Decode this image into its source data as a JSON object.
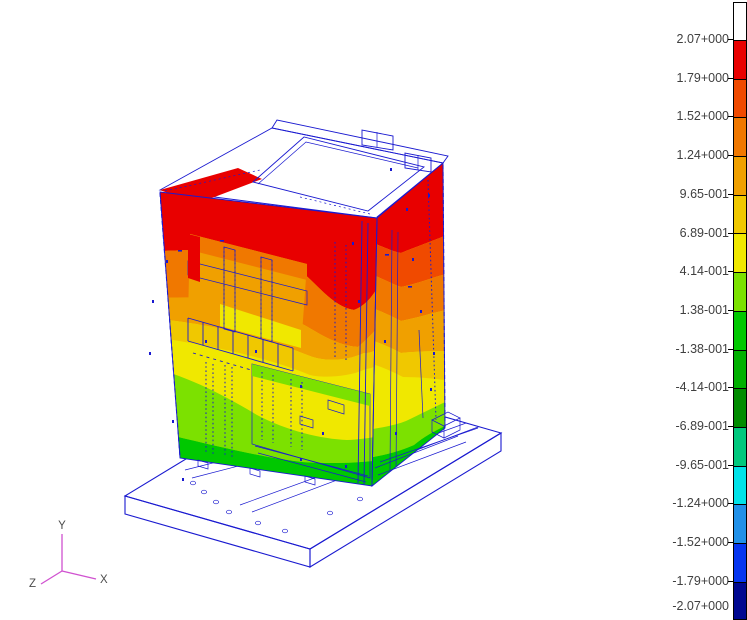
{
  "scene": {
    "background": "#ffffff"
  },
  "colorbar": {
    "text_color": "#3f3f3f",
    "tick_color": "#000000"
  },
  "triad": {
    "x_label": "X",
    "y_label": "Y",
    "z_label": "Z",
    "axis_color": "#d052d0",
    "label_color": "#4c4c4c"
  },
  "model": {
    "edge_color": "#1a1ad0"
  },
  "chart_data": {
    "type": "heatmap",
    "plot_kind": "3d-fringe-contour",
    "title": "",
    "legend_position": "right",
    "legend_labels": [
      "2.07+000",
      "1.79+000",
      "1.52+000",
      "1.24+000",
      "9.65-001",
      "6.89-001",
      "4.14-001",
      "1.38-001",
      "-1.38-001",
      "-4.14-001",
      "-6.89-001",
      "-9.65-001",
      "-1.24+000",
      "-1.52+000",
      "-1.79+000",
      "-2.07+000"
    ],
    "legend_values": [
      2.07,
      1.79,
      1.52,
      1.24,
      0.965,
      0.689,
      0.414,
      0.138,
      -0.138,
      -0.414,
      -0.689,
      -0.965,
      -1.24,
      -1.52,
      -1.79,
      -2.07
    ],
    "legend_colors": [
      "#e80000",
      "#f04a00",
      "#f07800",
      "#f0a000",
      "#f0c800",
      "#f0e800",
      "#7ce100",
      "#00c800",
      "#00b000",
      "#008c00",
      "#00c87d",
      "#00e2e8",
      "#2090e8",
      "#0535f0",
      "#000890"
    ],
    "above_max_color": "#ffffff",
    "value_min": -2.07,
    "value_max": 2.07,
    "triad_labels": [
      "X",
      "Y",
      "Z"
    ]
  }
}
